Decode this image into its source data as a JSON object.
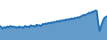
{
  "chart_data": {
    "type": "area",
    "values": [
      55,
      52,
      50,
      53,
      51,
      54,
      52,
      55,
      53,
      54,
      52,
      53,
      51,
      54,
      52,
      53,
      51,
      55,
      53,
      54,
      52,
      56,
      54,
      55,
      53,
      57,
      55,
      56,
      54,
      58,
      57,
      59,
      58,
      60,
      59,
      61,
      60,
      62,
      61,
      63,
      62,
      64,
      63,
      65,
      64,
      66,
      65,
      67,
      66,
      68,
      67,
      69,
      68,
      70,
      69,
      71,
      72,
      74,
      73,
      75,
      76,
      78,
      77,
      80,
      79,
      82,
      81,
      60,
      45,
      55,
      62,
      68,
      70,
      72
    ],
    "color": "#2171b5",
    "xlim": [
      0,
      73
    ],
    "ylim": [
      30,
      100
    ],
    "grid": false,
    "tick_labels": false
  }
}
